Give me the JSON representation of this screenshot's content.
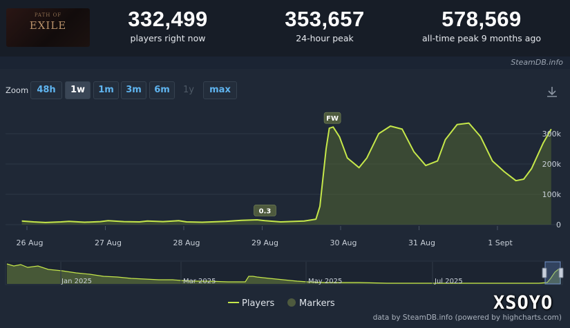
{
  "header": {
    "logo_text": "EXILE",
    "logo_subtext": "PATH OF",
    "stats": [
      {
        "value": "332,499",
        "label": "players right now"
      },
      {
        "value": "353,657",
        "label": "24-hour peak"
      },
      {
        "value": "578,569",
        "label": "all-time peak 9 months ago"
      }
    ],
    "credit": "SteamDB.info"
  },
  "zoom": {
    "label": "Zoom",
    "buttons": [
      {
        "label": "48h",
        "state": "normal"
      },
      {
        "label": "1w",
        "state": "active"
      },
      {
        "label": "1m",
        "state": "normal"
      },
      {
        "label": "3m",
        "state": "normal"
      },
      {
        "label": "6m",
        "state": "normal"
      },
      {
        "label": "1y",
        "state": "disabled"
      },
      {
        "label": "max",
        "state": "normal"
      }
    ],
    "download_icon": "download-icon"
  },
  "colors": {
    "series": "#c6e84a",
    "area": "#5a7034",
    "marker": "#4e5a3e",
    "grid": "#2e3846",
    "label": "#c9d0d9"
  },
  "chart_data": {
    "type": "line",
    "x_unit": "days since 26 Aug",
    "ylim": [
      0,
      350000
    ],
    "yticks": [
      0,
      100000,
      200000,
      300000
    ],
    "ytick_labels": [
      "0",
      "100k",
      "200k",
      "300k"
    ],
    "xticks": [
      0,
      1,
      2,
      3,
      4,
      5,
      6
    ],
    "xtick_labels": [
      "26 Aug",
      "27 Aug",
      "28 Aug",
      "29 Aug",
      "30 Aug",
      "31 Aug",
      "1 Sept"
    ],
    "series": [
      {
        "name": "Players",
        "x": [
          -0.1,
          0.05,
          0.2,
          0.4,
          0.5,
          0.7,
          0.9,
          1.0,
          1.2,
          1.4,
          1.5,
          1.7,
          1.9,
          2.0,
          2.2,
          2.5,
          2.7,
          2.9,
          3.0,
          3.2,
          3.5,
          3.65,
          3.7,
          3.78,
          3.82,
          3.87,
          3.95,
          4.05,
          4.2,
          4.3,
          4.45,
          4.6,
          4.75,
          4.9,
          5.05,
          5.2,
          5.3,
          5.45,
          5.6,
          5.75,
          5.9,
          6.05,
          6.2,
          6.3,
          6.4,
          6.55,
          6.65
        ],
        "y": [
          12000,
          9000,
          7000,
          9000,
          11000,
          8000,
          10000,
          13000,
          10000,
          9000,
          12000,
          10000,
          13000,
          9000,
          8000,
          11000,
          14000,
          16000,
          13000,
          9000,
          12000,
          18000,
          60000,
          250000,
          318000,
          322000,
          290000,
          220000,
          188000,
          220000,
          300000,
          325000,
          315000,
          240000,
          195000,
          210000,
          280000,
          330000,
          335000,
          290000,
          210000,
          175000,
          145000,
          150000,
          185000,
          270000,
          315000
        ]
      }
    ],
    "markers": [
      {
        "label": "0.3",
        "x": 3.0,
        "y": 15000
      },
      {
        "label": "FW",
        "x": 3.86,
        "y": 320000
      }
    ],
    "navigator": {
      "tick_labels": [
        "Jan 2025",
        "Mar 2025",
        "May 2025",
        "Jul 2025"
      ]
    },
    "legend": {
      "items": [
        "Players",
        "Markers"
      ],
      "position": "bottom-center"
    }
  },
  "footer": {
    "credit": "data by SteamDB.info (powered by highcharts.com)"
  },
  "watermark": "XSOYO"
}
